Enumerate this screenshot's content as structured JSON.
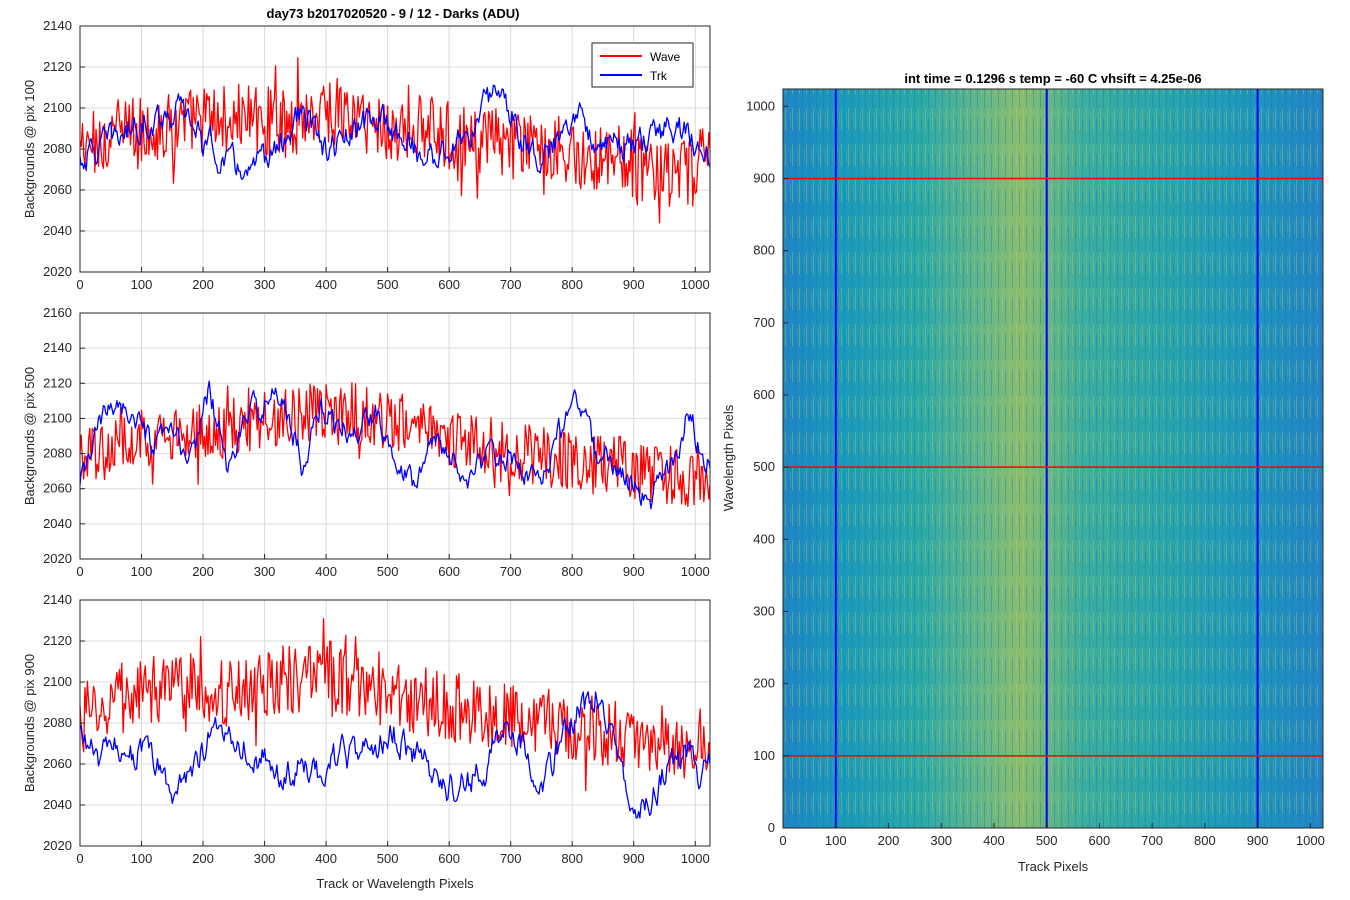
{
  "colors": {
    "wave": "#ff0000",
    "trk": "#0000ff",
    "grid": "#d9d9d9",
    "axis": "#262626"
  },
  "chart_data": [
    {
      "type": "line",
      "title": "day73 b2017020520 - 9 / 12 - Darks (ADU)",
      "xlabel": "",
      "ylabel": "Backgrounds @ pix 100",
      "xlim": [
        0,
        1024
      ],
      "ylim": [
        2020,
        2140
      ],
      "xticks": [
        "0",
        "100",
        "200",
        "300",
        "400",
        "500",
        "600",
        "700",
        "800",
        "900",
        "1000"
      ],
      "yticks": [
        "2020",
        "2040",
        "2060",
        "2080",
        "2100",
        "2120",
        "2140"
      ],
      "grid": true,
      "legend": {
        "position": "top-right",
        "entries": [
          "Wave",
          "Trk"
        ]
      },
      "series": [
        {
          "name": "Wave",
          "color": "#ff0000",
          "x": [
            0,
            40,
            80,
            120,
            160,
            200,
            240,
            280,
            320,
            360,
            400,
            440,
            480,
            520,
            560,
            600,
            640,
            680,
            720,
            760,
            800,
            840,
            880,
            920,
            960,
            1000,
            1024
          ],
          "values": [
            2080,
            2085,
            2090,
            2088,
            2092,
            2095,
            2094,
            2096,
            2092,
            2095,
            2100,
            2096,
            2092,
            2088,
            2090,
            2086,
            2083,
            2084,
            2080,
            2082,
            2078,
            2076,
            2075,
            2070,
            2066,
            2068,
            2085
          ]
        },
        {
          "name": "Trk",
          "color": "#0000ff",
          "x": [
            0,
            40,
            80,
            120,
            160,
            200,
            240,
            280,
            320,
            360,
            400,
            440,
            480,
            520,
            560,
            600,
            640,
            680,
            720,
            760,
            800,
            840,
            880,
            920,
            960,
            1000,
            1024
          ],
          "values": [
            2075,
            2082,
            2090,
            2095,
            2100,
            2085,
            2073,
            2068,
            2080,
            2098,
            2078,
            2086,
            2096,
            2088,
            2075,
            2080,
            2090,
            2112,
            2085,
            2075,
            2100,
            2086,
            2080,
            2083,
            2093,
            2084,
            2075
          ]
        }
      ]
    },
    {
      "type": "line",
      "title": "",
      "xlabel": "",
      "ylabel": "Backgrounds @ pix 500",
      "xlim": [
        0,
        1024
      ],
      "ylim": [
        2020,
        2160
      ],
      "xticks": [
        "0",
        "100",
        "200",
        "300",
        "400",
        "500",
        "600",
        "700",
        "800",
        "900",
        "1000"
      ],
      "yticks": [
        "2020",
        "2040",
        "2060",
        "2080",
        "2100",
        "2120",
        "2140",
        "2160"
      ],
      "grid": true,
      "series": [
        {
          "name": "Wave",
          "color": "#ff0000",
          "x": [
            0,
            40,
            80,
            120,
            160,
            200,
            240,
            280,
            320,
            360,
            400,
            440,
            480,
            520,
            560,
            600,
            640,
            680,
            720,
            760,
            800,
            840,
            880,
            920,
            960,
            1000,
            1024
          ],
          "values": [
            2075,
            2082,
            2087,
            2090,
            2088,
            2092,
            2094,
            2096,
            2100,
            2102,
            2104,
            2105,
            2100,
            2098,
            2094,
            2090,
            2085,
            2083,
            2080,
            2078,
            2076,
            2075,
            2073,
            2070,
            2068,
            2066,
            2070
          ]
        },
        {
          "name": "Trk",
          "color": "#0000ff",
          "x": [
            0,
            30,
            60,
            90,
            120,
            150,
            180,
            210,
            240,
            270,
            300,
            330,
            360,
            390,
            420,
            450,
            480,
            510,
            540,
            570,
            600,
            630,
            660,
            690,
            720,
            750,
            780,
            810,
            840,
            870,
            900,
            930,
            960,
            990,
            1010,
            1024
          ],
          "values": [
            2060,
            2095,
            2112,
            2098,
            2082,
            2092,
            2075,
            2118,
            2070,
            2100,
            2110,
            2112,
            2075,
            2105,
            2096,
            2090,
            2105,
            2082,
            2065,
            2088,
            2080,
            2065,
            2078,
            2080,
            2065,
            2068,
            2094,
            2110,
            2078,
            2075,
            2060,
            2055,
            2072,
            2105,
            2080,
            2075
          ]
        }
      ]
    },
    {
      "type": "line",
      "title": "",
      "xlabel": "Track or Wavelength Pixels",
      "ylabel": "Backgrounds @ pix 900",
      "xlim": [
        0,
        1024
      ],
      "ylim": [
        2020,
        2140
      ],
      "xticks": [
        "0",
        "100",
        "200",
        "300",
        "400",
        "500",
        "600",
        "700",
        "800",
        "900",
        "1000"
      ],
      "yticks": [
        "2020",
        "2040",
        "2060",
        "2080",
        "2100",
        "2120",
        "2140"
      ],
      "grid": true,
      "series": [
        {
          "name": "Wave",
          "color": "#ff0000",
          "x": [
            0,
            40,
            80,
            120,
            160,
            200,
            240,
            280,
            320,
            360,
            400,
            440,
            480,
            520,
            560,
            600,
            640,
            680,
            720,
            760,
            800,
            840,
            880,
            920,
            960,
            1000,
            1024
          ],
          "values": [
            2082,
            2088,
            2092,
            2095,
            2098,
            2096,
            2094,
            2098,
            2102,
            2100,
            2104,
            2100,
            2096,
            2092,
            2090,
            2088,
            2086,
            2084,
            2082,
            2080,
            2078,
            2076,
            2074,
            2072,
            2070,
            2068,
            2075
          ]
        },
        {
          "name": "Trk",
          "color": "#0000ff",
          "x": [
            0,
            30,
            60,
            90,
            120,
            150,
            180,
            210,
            240,
            270,
            300,
            330,
            360,
            390,
            420,
            450,
            480,
            510,
            540,
            570,
            600,
            630,
            660,
            690,
            720,
            750,
            780,
            810,
            840,
            870,
            900,
            930,
            960,
            990,
            1010,
            1024
          ],
          "values": [
            2075,
            2062,
            2068,
            2066,
            2062,
            2045,
            2058,
            2072,
            2078,
            2068,
            2062,
            2052,
            2058,
            2056,
            2065,
            2062,
            2068,
            2075,
            2064,
            2058,
            2048,
            2052,
            2058,
            2080,
            2070,
            2050,
            2068,
            2085,
            2095,
            2072,
            2038,
            2045,
            2060,
            2065,
            2052,
            2062
          ]
        }
      ]
    },
    {
      "type": "heatmap",
      "title": "int time = 0.1296 s    temp = -60 C    vhsift = 4.25e-06",
      "xlabel": "Track Pixels",
      "ylabel": "Wavelength Pixels",
      "xlim": [
        0,
        1024
      ],
      "ylim": [
        0,
        1024
      ],
      "xticks": [
        "0",
        "100",
        "200",
        "300",
        "400",
        "500",
        "600",
        "700",
        "800",
        "900",
        "1000"
      ],
      "yticks": [
        "0",
        "100",
        "200",
        "300",
        "400",
        "500",
        "600",
        "700",
        "800",
        "900",
        "1000"
      ],
      "colormap": [
        "#2480c0",
        "#1ea3b5",
        "#3ab59b",
        "#a0c056"
      ],
      "bright_band_track_center": 420,
      "markers": {
        "vertical_lines_x": [
          100,
          500,
          900
        ],
        "horizontal_lines_y": [
          100,
          500,
          900
        ],
        "vertical_color": "#0000ff",
        "horizontal_color": "#ff0000"
      }
    }
  ]
}
